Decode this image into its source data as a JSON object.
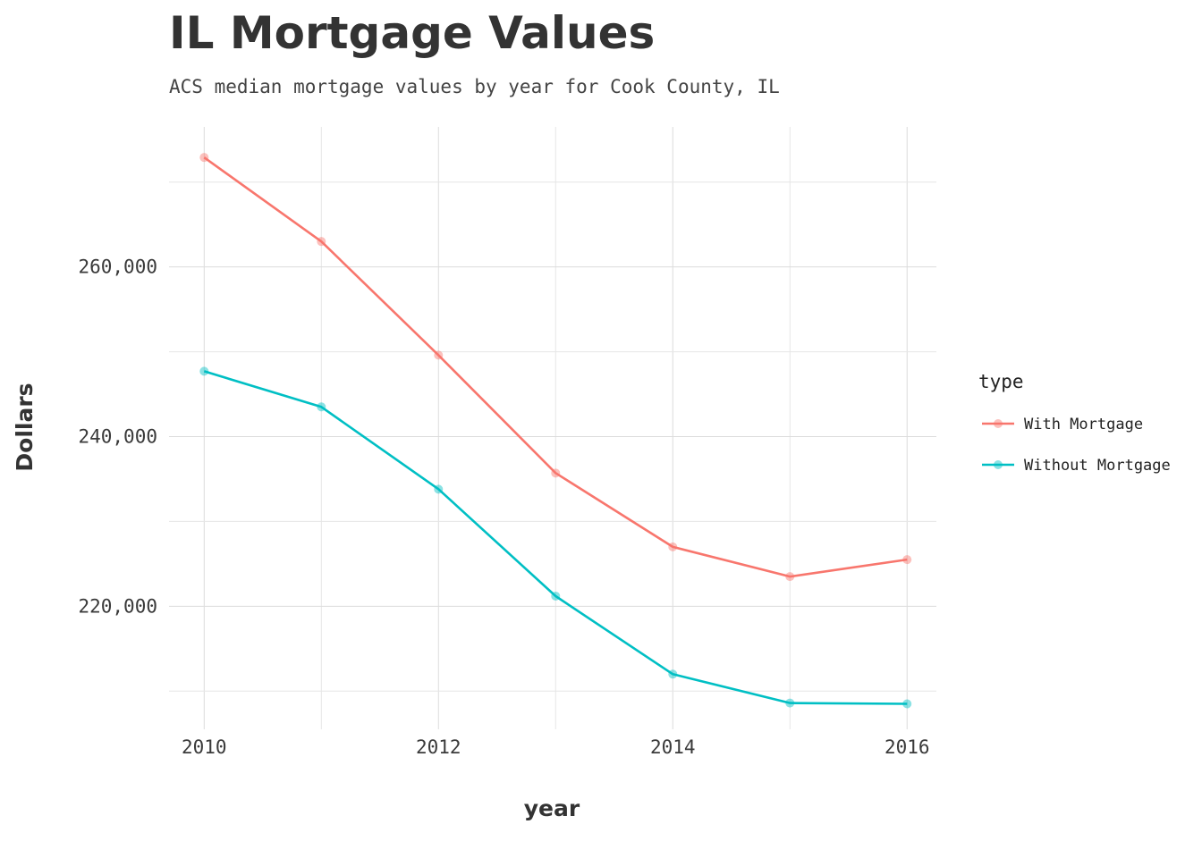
{
  "chart_data": {
    "type": "line",
    "title": "IL Mortgage Values",
    "subtitle": "ACS median mortgage values by year for Cook County, IL",
    "xlabel": "year",
    "ylabel": "Dollars",
    "x": [
      2010,
      2011,
      2012,
      2013,
      2014,
      2015,
      2016
    ],
    "xlim": [
      2009.7,
      2016.25
    ],
    "xticks": [
      2010,
      2012,
      2014,
      2016
    ],
    "ylim": [
      205500,
      276500
    ],
    "yticks": [
      220000,
      240000,
      260000
    ],
    "ytick_labels": [
      "220,000",
      "240,000",
      "260,000"
    ],
    "grid": true,
    "legend": {
      "title": "type",
      "position": "right"
    },
    "series": [
      {
        "name": "With Mortgage",
        "color": "#F8766D",
        "values": [
          272900,
          263000,
          249600,
          235700,
          227000,
          223500,
          225500
        ]
      },
      {
        "name": "Without Mortgage",
        "color": "#00BFC4",
        "values": [
          247700,
          243500,
          233800,
          221200,
          212000,
          208600,
          208500
        ]
      }
    ]
  }
}
